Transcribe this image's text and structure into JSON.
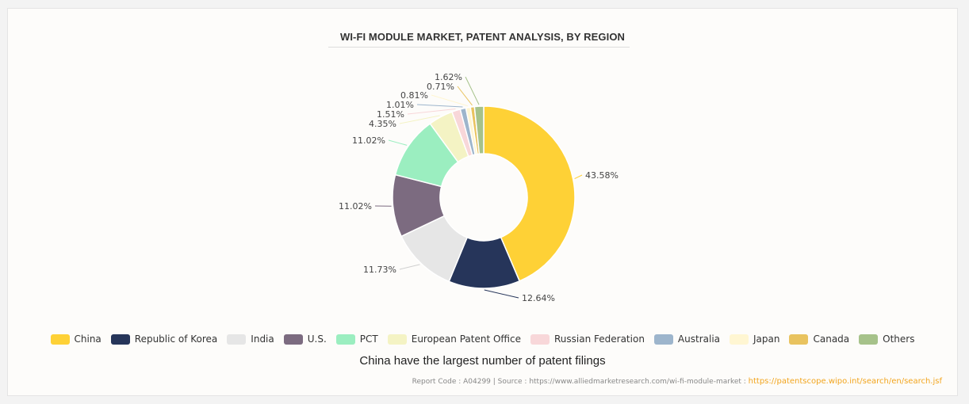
{
  "chart_data": {
    "type": "pie",
    "title": "WI-FI MODULE MARKET, PATENT ANALYSIS, BY REGION",
    "subtitle": "China have the largest number of patent filings",
    "donut": true,
    "categories": [
      "China",
      "Republic of Korea",
      "India",
      "U.S.",
      "PCT",
      "European Patent Office",
      "Russian Federation",
      "Australia",
      "Japan",
      "Canada",
      "Others"
    ],
    "values": [
      43.58,
      12.64,
      11.73,
      11.02,
      11.02,
      4.35,
      1.51,
      1.01,
      0.81,
      0.71,
      1.62
    ],
    "labels": [
      "43.58%",
      "12.64%",
      "11.73%",
      "11.02%",
      "11.02%",
      "4.35%",
      "1.51%",
      "1.01%",
      "0.81%",
      "0.71%",
      "1.62%"
    ],
    "colors": [
      "#fed136",
      "#26355a",
      "#e6e6e6",
      "#7c6b80",
      "#9beec0",
      "#f4f3c4",
      "#f8d7d9",
      "#9db5cc",
      "#fff6d2",
      "#e9c35f",
      "#a6c28a"
    ],
    "legend_position": "bottom"
  },
  "footer": {
    "report_text": "Report Code : A04299  |  Source : https://www.alliedmarketresearch.com/wi-fi-module-market : ",
    "link_text": "https://patentscope.wipo.int/search/en/search.jsf"
  }
}
